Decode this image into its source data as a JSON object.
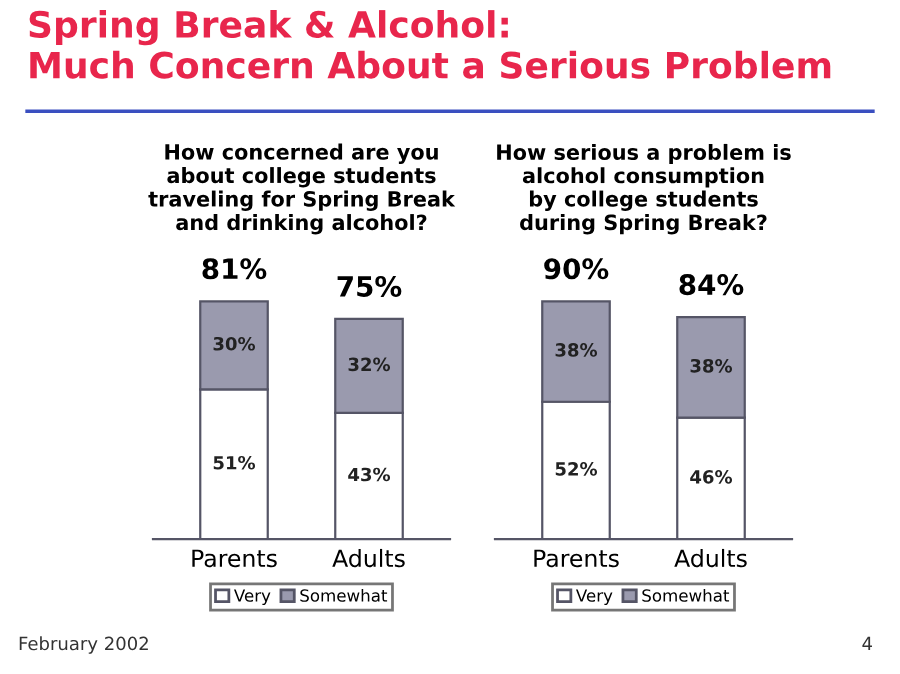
{
  "chart_data": [
    {
      "type": "bar",
      "stacked": true,
      "title": "How concerned are you\nabout college students\ntraveling for Spring Break\nand drinking alcohol?",
      "categories": [
        "Parents",
        "Adults"
      ],
      "series": [
        {
          "name": "Very",
          "color": "#ffffff",
          "values": [
            51,
            43
          ],
          "value_labels": [
            "51%",
            "43%"
          ]
        },
        {
          "name": "Somewhat",
          "color": "#9a9aae",
          "values": [
            30,
            32
          ],
          "value_labels": [
            "30%",
            "32%"
          ]
        }
      ],
      "totals": [
        "81%",
        "75%"
      ],
      "legend": "bottom",
      "tick_labels": "x",
      "annotations": [
        "Spring Break & Alcohol:\nMuch Concern About a Serious Problem",
        "February 2002",
        "4"
      ]
    },
    {
      "type": "bar",
      "stacked": true,
      "title": "How serious a problem is\nalcohol consumption\nby college students\nduring Spring Break?",
      "categories": [
        "Parents",
        "Adults"
      ],
      "series": [
        {
          "name": "Very",
          "color": "#ffffff",
          "values": [
            52,
            46
          ],
          "value_labels": [
            "52%",
            "46%"
          ]
        },
        {
          "name": "Somewhat",
          "color": "#9a9aae",
          "values": [
            38,
            38
          ],
          "value_labels": [
            "38%",
            "38%"
          ]
        }
      ],
      "totals": [
        "90%",
        "84%"
      ],
      "legend": "bottom",
      "tick_labels": "x"
    }
  ]
}
